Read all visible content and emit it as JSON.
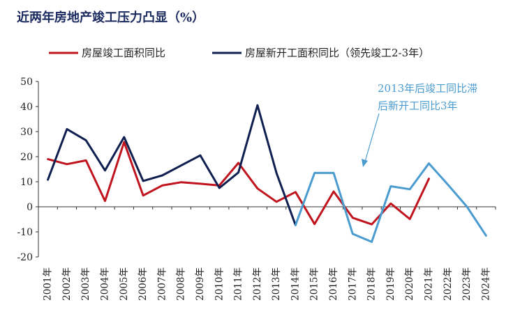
{
  "chart_data": {
    "type": "line",
    "title": "近两年房地产竣工压力凸显（%）",
    "xlabel": "",
    "ylabel": "",
    "ylim": [
      -20,
      50
    ],
    "yticks": [
      -20,
      -10,
      0,
      10,
      20,
      30,
      40,
      50
    ],
    "grid": false,
    "legend_position": "top",
    "categories": [
      "2001年",
      "2002年",
      "2003年",
      "2004年",
      "2005年",
      "2006年",
      "2007年",
      "2008年",
      "2009年",
      "2010年",
      "2011年",
      "2012年",
      "2013年",
      "2014年",
      "2015年",
      "2016年",
      "2017年",
      "2018年",
      "2019年",
      "2020年",
      "2021年",
      "2022年",
      "2023年",
      "2024年"
    ],
    "series": [
      {
        "name": "房屋竣工面积同比",
        "color": "#c0141e",
        "values": [
          19,
          17,
          18.5,
          2.3,
          25.8,
          4.5,
          8.5,
          9.8,
          9.2,
          8.5,
          17.5,
          7.3,
          2.0,
          5.9,
          -6.9,
          6.1,
          -4.4,
          -7.0,
          1.3,
          -4.9,
          11.2,
          null,
          null,
          null
        ]
      },
      {
        "name": "房屋新开工面积同比（领先竣工2-3年）",
        "color": "#0f1f50",
        "color_after_2014": "#4a9bd0",
        "split_index": 13,
        "values": [
          10.8,
          31.0,
          26.5,
          14.5,
          27.8,
          10.3,
          12.5,
          16.5,
          20.5,
          7.5,
          13.7,
          40.5,
          13.5,
          -7.3,
          13.5,
          13.5,
          -10.8,
          -14.0,
          8.2,
          7.0,
          17.3,
          8.8,
          0.0,
          -11.5
        ]
      }
    ],
    "annotations": [
      {
        "text_line1": "2013年后竣工同比滞",
        "text_line2": "后新开工同比3年"
      }
    ]
  }
}
